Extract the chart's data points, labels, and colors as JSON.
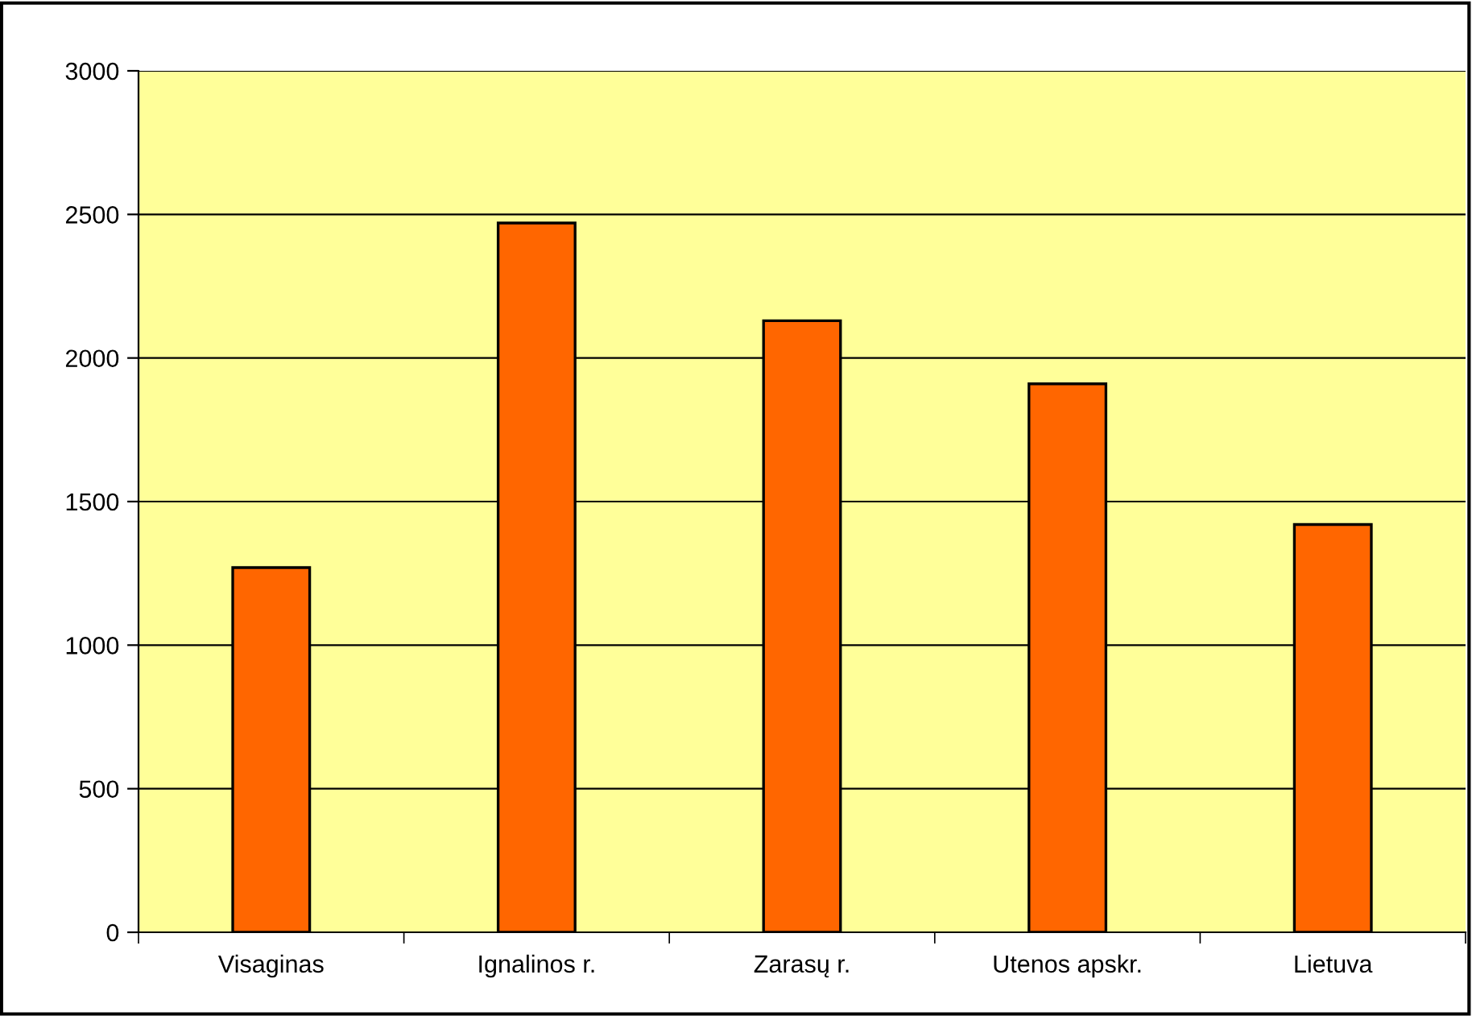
{
  "chart_data": {
    "type": "bar",
    "categories": [
      "Visaginas",
      "Ignalinos r.",
      "Zarasų r.",
      "Utenos apskr.",
      "Lietuva"
    ],
    "values": [
      1270,
      2470,
      2130,
      1910,
      1420
    ],
    "color": "#ff6600",
    "ylim": [
      0,
      3000
    ],
    "yticks": [
      0,
      500,
      1000,
      1500,
      2000,
      2500,
      3000
    ],
    "grid": "y"
  }
}
